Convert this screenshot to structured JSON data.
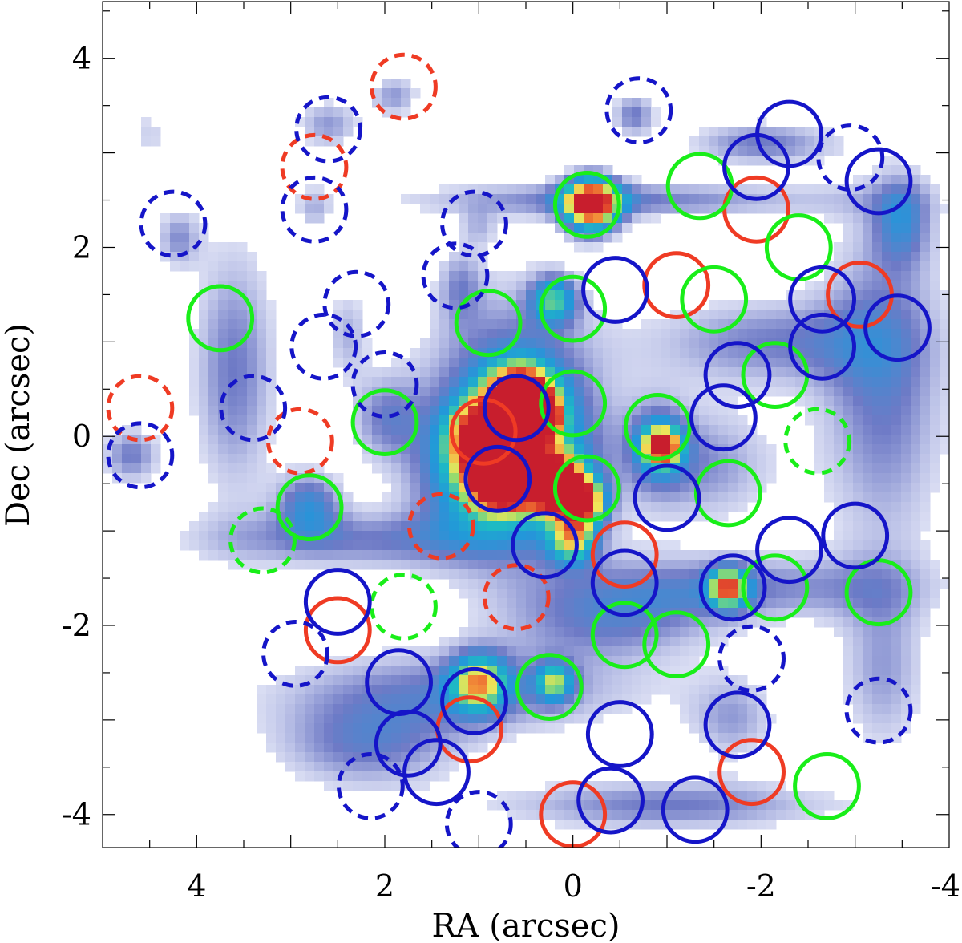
{
  "chart_data": {
    "type": "scatter",
    "background": "intensity map (blue-green-yellow-red colormap)",
    "xlabel": "RA (arcsec)",
    "ylabel": "Dec (arcsec)",
    "xlim": [
      5,
      -4
    ],
    "ylim": [
      -4.35,
      4.6
    ],
    "x_inverted": true,
    "xticks": [
      4,
      2,
      0,
      -2,
      -4
    ],
    "xtick_labels": [
      "4",
      "2",
      "0",
      "-2",
      "-4"
    ],
    "yticks": [
      4,
      2,
      0,
      -2,
      -4
    ],
    "ytick_labels": [
      "4",
      "2",
      "0",
      "-2",
      "-4"
    ],
    "circle_radius_arcsec": 0.34,
    "colors": {
      "red": "#ef3b24",
      "green": "#19ee19",
      "blue": "#1515c8"
    },
    "blobs": [
      {
        "x": 0.65,
        "y": 0.25,
        "rx": 1.2,
        "ry": 1.6,
        "v": 0.45
      },
      {
        "x": 0.55,
        "y": -0.2,
        "rx": 0.9,
        "ry": 0.9,
        "v": 0.35
      },
      {
        "x": 1.1,
        "y": -0.5,
        "rx": 0.8,
        "ry": 0.7,
        "v": 0.25
      },
      {
        "x": -0.9,
        "y": -0.1,
        "rx": 0.4,
        "ry": 0.6,
        "v": 0.3
      },
      {
        "x": -0.5,
        "y": 2.5,
        "rx": 3.0,
        "ry": 0.25,
        "v": 0.3
      },
      {
        "x": -3.3,
        "y": 0.6,
        "rx": 0.9,
        "ry": 2.4,
        "v": 0.32
      },
      {
        "x": -2.0,
        "y": 1.0,
        "rx": 1.6,
        "ry": 0.6,
        "v": 0.28
      },
      {
        "x": -1.4,
        "y": -0.3,
        "rx": 1.0,
        "ry": 0.8,
        "v": 0.26
      },
      {
        "x": -1.5,
        "y": -1.6,
        "rx": 2.6,
        "ry": 0.45,
        "v": 0.3
      },
      {
        "x": -0.4,
        "y": -2.0,
        "rx": 1.5,
        "ry": 0.5,
        "v": 0.25
      },
      {
        "x": 1.2,
        "y": -2.7,
        "rx": 2.6,
        "ry": 0.6,
        "v": 0.3
      },
      {
        "x": 2.2,
        "y": -3.3,
        "rx": 1.3,
        "ry": 0.6,
        "v": 0.28
      },
      {
        "x": -1.0,
        "y": -3.9,
        "rx": 2.4,
        "ry": 0.35,
        "v": 0.3
      },
      {
        "x": -1.7,
        "y": -3.0,
        "rx": 0.6,
        "ry": 0.6,
        "v": 0.22
      },
      {
        "x": -3.3,
        "y": -2.5,
        "rx": 0.6,
        "ry": 1.2,
        "v": 0.22
      },
      {
        "x": 3.6,
        "y": 0.7,
        "rx": 0.6,
        "ry": 1.8,
        "v": 0.3
      },
      {
        "x": 4.7,
        "y": -0.2,
        "rx": 0.4,
        "ry": 0.4,
        "v": 0.3
      },
      {
        "x": 4.2,
        "y": 2.1,
        "rx": 0.3,
        "ry": 0.4,
        "v": 0.25
      },
      {
        "x": 2.2,
        "y": -1.1,
        "rx": 2.5,
        "ry": 0.4,
        "v": 0.28
      },
      {
        "x": 2.8,
        "y": -0.7,
        "rx": 0.45,
        "ry": 0.45,
        "v": 0.35
      },
      {
        "x": 2.0,
        "y": 0.2,
        "rx": 0.5,
        "ry": 0.6,
        "v": 0.25
      },
      {
        "x": 2.4,
        "y": 1.1,
        "rx": 0.3,
        "ry": 0.6,
        "v": 0.2
      },
      {
        "x": 2.6,
        "y": 3.3,
        "rx": 0.45,
        "ry": 0.35,
        "v": 0.25
      },
      {
        "x": 1.9,
        "y": 3.6,
        "rx": 0.35,
        "ry": 0.3,
        "v": 0.25
      },
      {
        "x": 2.75,
        "y": 2.4,
        "rx": 0.25,
        "ry": 0.35,
        "v": 0.18
      },
      {
        "x": 1.2,
        "y": 1.6,
        "rx": 0.3,
        "ry": 0.5,
        "v": 0.2
      },
      {
        "x": 1.0,
        "y": 2.2,
        "rx": 0.25,
        "ry": 0.25,
        "v": 0.15
      },
      {
        "x": -0.65,
        "y": 3.4,
        "rx": 0.3,
        "ry": 0.3,
        "v": 0.3
      },
      {
        "x": -2.0,
        "y": 3.1,
        "rx": 1.0,
        "ry": 0.3,
        "v": 0.3
      },
      {
        "x": -3.5,
        "y": 2.3,
        "rx": 0.4,
        "ry": 0.6,
        "v": 0.28
      },
      {
        "x": 4.5,
        "y": 3.2,
        "rx": 0.3,
        "ry": 0.4,
        "v": 0.15
      }
    ],
    "peaks": [
      {
        "x": -0.2,
        "y": 2.45,
        "r": 0.3,
        "v": 0.95
      },
      {
        "x": 0.55,
        "y": 0.4,
        "r": 0.33,
        "v": 0.95
      },
      {
        "x": 0.35,
        "y": 0.2,
        "r": 0.2,
        "v": 0.8
      },
      {
        "x": 0.75,
        "y": -0.45,
        "r": 0.3,
        "v": 0.92
      },
      {
        "x": 0.2,
        "y": -0.5,
        "r": 0.3,
        "v": 0.9
      },
      {
        "x": -0.1,
        "y": -0.7,
        "r": 0.25,
        "v": 0.82
      },
      {
        "x": 0.95,
        "y": 0.0,
        "r": 0.35,
        "v": 0.72
      },
      {
        "x": -0.95,
        "y": -0.1,
        "r": 0.2,
        "v": 0.72
      },
      {
        "x": -1.65,
        "y": -1.6,
        "r": 0.2,
        "v": 0.68
      },
      {
        "x": 1.0,
        "y": -2.6,
        "r": 0.3,
        "v": 0.6
      },
      {
        "x": 0.2,
        "y": -2.6,
        "r": 0.2,
        "v": 0.5
      },
      {
        "x": 0.2,
        "y": 1.45,
        "r": 0.25,
        "v": 0.5
      },
      {
        "x": 0.0,
        "y": -1.1,
        "r": 0.25,
        "v": 0.55
      }
    ],
    "series": [
      {
        "name": "red",
        "style": "solid",
        "points": [
          [
            0.0,
            -4.0
          ],
          [
            1.1,
            -3.1
          ],
          [
            2.5,
            -2.05
          ],
          [
            -0.55,
            -1.25
          ],
          [
            0.95,
            0.05
          ],
          [
            -1.1,
            1.6
          ],
          [
            -1.95,
            2.4
          ],
          [
            -3.05,
            1.5
          ],
          [
            -1.9,
            -3.55
          ]
        ]
      },
      {
        "name": "red",
        "style": "dashed",
        "points": [
          [
            1.8,
            3.7
          ],
          [
            2.75,
            2.85
          ],
          [
            4.6,
            0.3
          ],
          [
            2.9,
            -0.05
          ],
          [
            1.4,
            -0.95
          ],
          [
            0.6,
            -1.7
          ]
        ]
      },
      {
        "name": "green",
        "style": "solid",
        "points": [
          [
            -0.15,
            2.45
          ],
          [
            -1.35,
            2.65
          ],
          [
            -2.4,
            2.0
          ],
          [
            0.0,
            1.35
          ],
          [
            -1.5,
            1.45
          ],
          [
            0.9,
            1.2
          ],
          [
            3.75,
            1.25
          ],
          [
            -2.15,
            0.65
          ],
          [
            2.0,
            0.15
          ],
          [
            0.0,
            0.35
          ],
          [
            -0.9,
            0.1
          ],
          [
            -1.65,
            -0.6
          ],
          [
            -0.15,
            -0.55
          ],
          [
            2.8,
            -0.75
          ],
          [
            -2.15,
            -1.6
          ],
          [
            -3.25,
            -1.65
          ],
          [
            -0.55,
            -2.1
          ],
          [
            -1.1,
            -2.2
          ],
          [
            0.25,
            -2.65
          ],
          [
            -2.7,
            -3.7
          ]
        ]
      },
      {
        "name": "green",
        "style": "dashed",
        "points": [
          [
            -2.6,
            -0.05
          ],
          [
            3.3,
            -1.1
          ],
          [
            1.8,
            -1.8
          ]
        ]
      },
      {
        "name": "blue",
        "style": "solid",
        "points": [
          [
            -2.3,
            3.2
          ],
          [
            -1.95,
            2.85
          ],
          [
            -3.25,
            2.7
          ],
          [
            -0.45,
            1.55
          ],
          [
            -2.65,
            1.45
          ],
          [
            -3.45,
            1.15
          ],
          [
            -2.65,
            0.95
          ],
          [
            -1.75,
            0.65
          ],
          [
            0.6,
            0.3
          ],
          [
            -1.6,
            0.2
          ],
          [
            0.8,
            -0.45
          ],
          [
            -1.0,
            -0.65
          ],
          [
            -2.3,
            -1.2
          ],
          [
            -3.0,
            -1.05
          ],
          [
            0.3,
            -1.15
          ],
          [
            -0.55,
            -1.55
          ],
          [
            -1.7,
            -1.6
          ],
          [
            2.5,
            -1.75
          ],
          [
            1.85,
            -2.6
          ],
          [
            1.05,
            -2.8
          ],
          [
            1.75,
            -3.25
          ],
          [
            -0.5,
            -3.15
          ],
          [
            -1.75,
            -3.05
          ],
          [
            1.45,
            -3.55
          ],
          [
            -0.4,
            -3.85
          ],
          [
            -1.3,
            -3.95
          ]
        ]
      },
      {
        "name": "blue",
        "style": "dashed",
        "points": [
          [
            -0.7,
            3.45
          ],
          [
            2.6,
            3.25
          ],
          [
            -2.95,
            2.95
          ],
          [
            2.75,
            2.4
          ],
          [
            4.25,
            2.25
          ],
          [
            1.05,
            2.25
          ],
          [
            1.25,
            1.7
          ],
          [
            2.3,
            1.4
          ],
          [
            2.65,
            0.95
          ],
          [
            2.0,
            0.55
          ],
          [
            3.4,
            0.3
          ],
          [
            4.6,
            -0.2
          ],
          [
            2.95,
            -2.3
          ],
          [
            -1.9,
            -2.35
          ],
          [
            -3.25,
            -2.9
          ],
          [
            2.15,
            -3.7
          ],
          [
            1.0,
            -4.1
          ]
        ]
      }
    ]
  }
}
